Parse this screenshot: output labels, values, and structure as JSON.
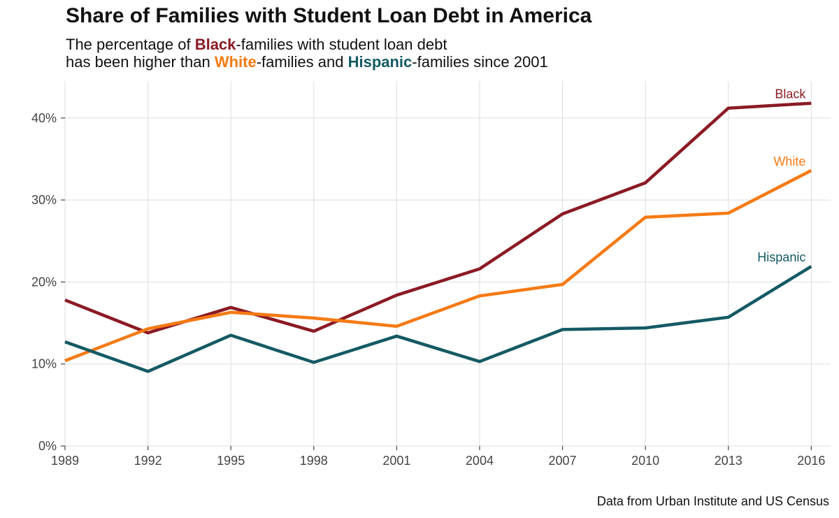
{
  "title": "Share of Families with Student Loan Debt in America",
  "subtitle": {
    "line1_pre": "The percentage of ",
    "line1_black": "Black",
    "line1_post": "-families with student loan debt",
    "line2_pre": "has been higher than ",
    "line2_white": "White",
    "line2_mid": "-families and ",
    "line2_hispanic": "Hispanic",
    "line2_post": "-families since 2001"
  },
  "caption": "Data from Urban Institute and US Census",
  "colors": {
    "black": "#8b1a24",
    "white": "#f57a14",
    "hispanic": "#145a64",
    "grid": "#dddddd",
    "axis": "#444444"
  },
  "chart_data": {
    "type": "line",
    "x": [
      1989,
      1992,
      1995,
      1998,
      2001,
      2004,
      2007,
      2010,
      2013,
      2016
    ],
    "x_tick_labels": [
      "1989",
      "1992",
      "1995",
      "1998",
      "2001",
      "2004",
      "2007",
      "2010",
      "2013",
      "2016"
    ],
    "y_ticks": [
      0,
      10,
      20,
      30,
      40
    ],
    "y_tick_labels": [
      "0%",
      "10%",
      "20%",
      "30%",
      "40%"
    ],
    "ylim": [
      0,
      44.5
    ],
    "xlim": [
      1989,
      2016.7
    ],
    "grid": true,
    "legend": "direct labels at line ends",
    "series": [
      {
        "name": "Black",
        "color": "#8b1a24",
        "values": [
          17.8,
          13.8,
          16.9,
          14.0,
          18.4,
          21.6,
          28.3,
          32.1,
          41.2,
          41.8
        ]
      },
      {
        "name": "White",
        "color": "#f57a14",
        "values": [
          10.4,
          14.3,
          16.3,
          15.6,
          14.6,
          18.3,
          19.7,
          27.9,
          28.4,
          33.6
        ]
      },
      {
        "name": "Hispanic",
        "color": "#145a64",
        "values": [
          12.7,
          9.1,
          13.5,
          10.2,
          13.4,
          10.3,
          14.2,
          14.4,
          15.7,
          21.9
        ]
      }
    ]
  }
}
